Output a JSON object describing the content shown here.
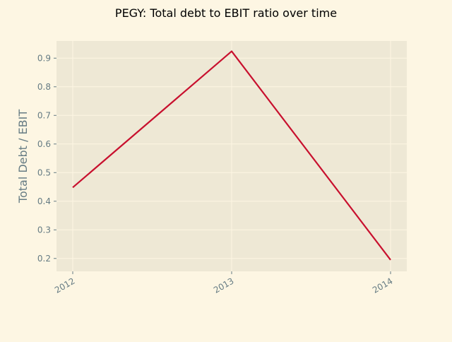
{
  "chart_data": {
    "type": "line",
    "title": "PEGY: Total debt to EBIT ratio over time",
    "xlabel": "",
    "ylabel": "Total Debt / EBIT",
    "categories": [
      "2012",
      "2013",
      "2014"
    ],
    "series": [
      {
        "values": [
          0.448,
          0.924,
          0.195
        ],
        "color": "#c8102e"
      }
    ],
    "ylim": [
      0.155,
      0.96
    ],
    "yticks": [
      0.2,
      0.3,
      0.4,
      0.5,
      0.6,
      0.7,
      0.8,
      0.9
    ],
    "grid": true,
    "legend": "none",
    "colors": {
      "figure_background": "#fdf6e3",
      "plot_background": "#eee8d5",
      "grid": "#fdf6e3",
      "tick_text": "#657b83",
      "title_text": "#000000",
      "ylabel_text": "#657b83"
    }
  }
}
